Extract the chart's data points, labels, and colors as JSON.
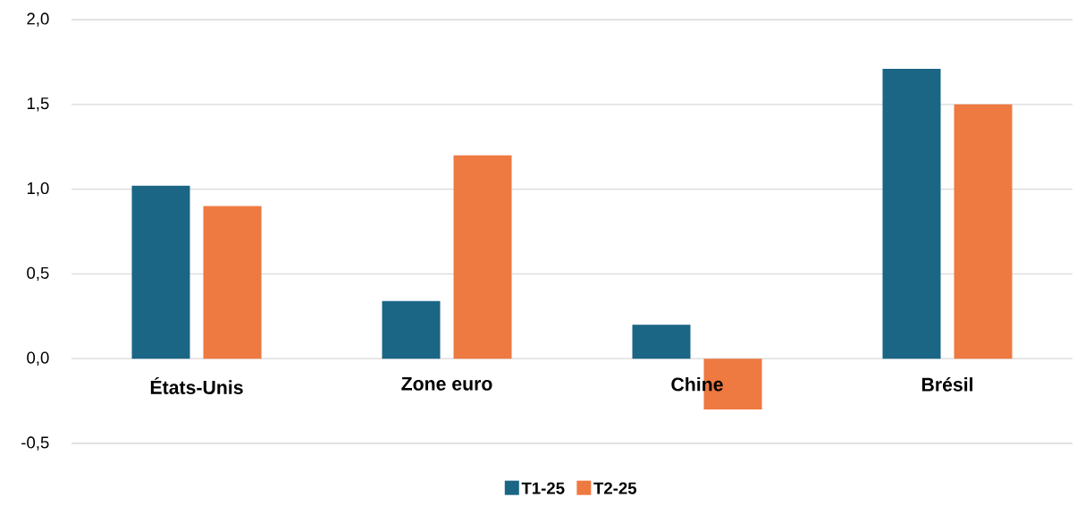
{
  "chart_data": {
    "type": "bar",
    "categories": [
      "États-Unis",
      "Zone euro",
      "Chine",
      "Brésil"
    ],
    "series": [
      {
        "name": "T1-25",
        "color": "#1b6585",
        "values": [
          1.02,
          0.34,
          0.2,
          1.71
        ]
      },
      {
        "name": "T2-25",
        "color": "#ee7941",
        "values": [
          0.9,
          1.2,
          -0.3,
          1.5
        ]
      }
    ],
    "ylim": [
      -0.5,
      2.0
    ],
    "yticks": [
      {
        "value": -0.5,
        "label": "-0,5"
      },
      {
        "value": 0,
        "label": "0,0"
      },
      {
        "value": 0.5,
        "label": "0,5"
      },
      {
        "value": 1.0,
        "label": "1,0"
      },
      {
        "value": 1.5,
        "label": "1,5"
      },
      {
        "value": 2.0,
        "label": "2,0"
      }
    ],
    "grid": "y",
    "legend": "bottom"
  }
}
